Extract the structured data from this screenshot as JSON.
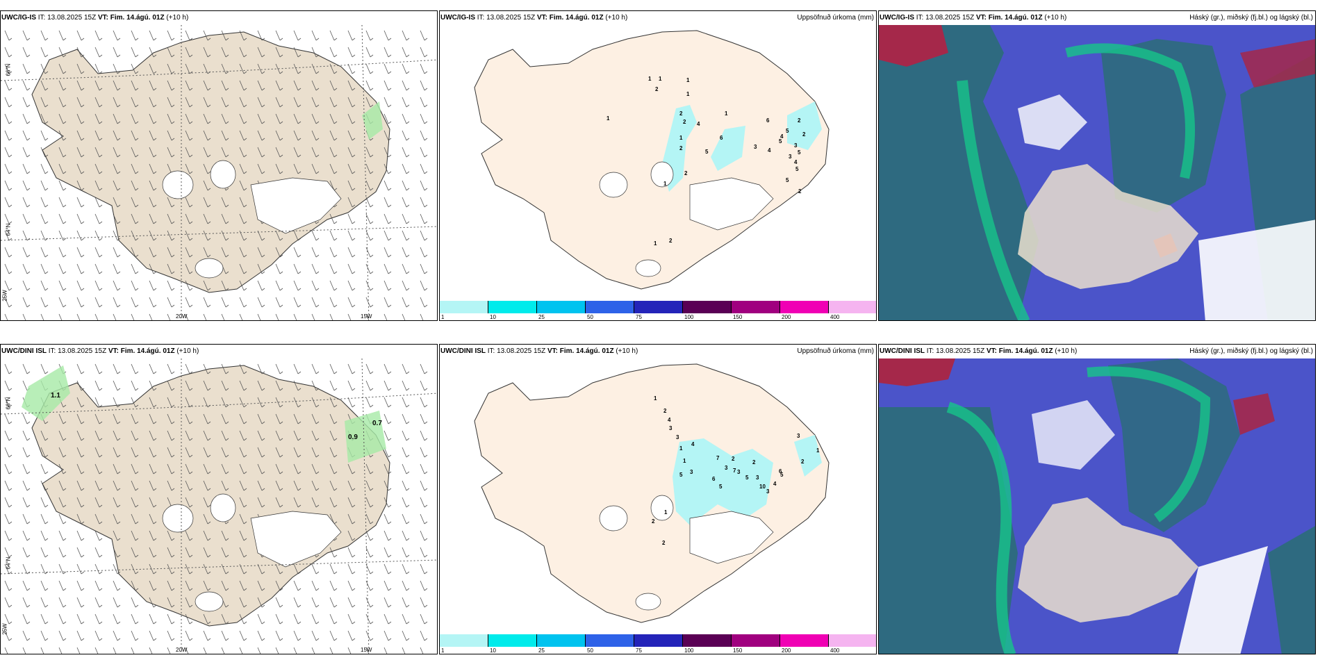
{
  "rows": [
    {
      "model": "UWC/IG-IS",
      "wind_title": {
        "model": "UWC/IG-IS",
        "it": "IT: 13.08.2025 15Z",
        "vt": "VT: Fim. 14.ágú. 01Z",
        "lead": "(+10 h)"
      },
      "precip_title": {
        "model": "UWC/IG-IS",
        "it": "IT: 13.08.2025 15Z",
        "vt": "VT: Fim. 14.ágú. 01Z",
        "lead": "(+10 h)",
        "right": "Uppsöfnuð úrkoma (mm)"
      },
      "cloud_title": {
        "model": "UWC/IG-IS",
        "it": "IT: 13.08.2025 15Z",
        "vt": "VT: Fim. 14.ágú. 01Z",
        "lead": "(+10 h)",
        "right": "Háský (gr.), miðský (fj.bl.) og lágský (bl.)"
      },
      "wind_labels": [],
      "precip_values": [
        "1",
        "1",
        "2",
        "1",
        "1",
        "1",
        "2",
        "2",
        "1",
        "4",
        "1",
        "2",
        "6",
        "5",
        "6",
        "2",
        "4",
        "5",
        "3",
        "4",
        "5",
        "3",
        "2",
        "3",
        "5",
        "4",
        "5",
        "5",
        "1",
        "2",
        "2",
        "1",
        "2"
      ]
    },
    {
      "model": "UWC/DINI ISL",
      "wind_title": {
        "model": "UWC/DINI ISL",
        "it": "IT: 13.08.2025 15Z",
        "vt": "VT: Fim. 14.ágú. 01Z",
        "lead": "(+10 h)"
      },
      "precip_title": {
        "model": "UWC/DINI ISL",
        "it": "IT: 13.08.2025 15Z",
        "vt": "VT: Fim. 14.ágú. 01Z",
        "lead": "(+10 h)",
        "right": "Uppsöfnuð úrkoma (mm)"
      },
      "cloud_title": {
        "model": "UWC/DINI ISL",
        "it": "IT: 13.08.2025 15Z",
        "vt": "VT: Fim. 14.ágú. 01Z",
        "lead": "(+10 h)",
        "right": "Háský (gr.), miðský (fj.bl.) og lágský (bl.)"
      },
      "wind_labels": [
        "1.1",
        "0.9",
        "0.7"
      ],
      "precip_values": [
        "1",
        "2",
        "4",
        "3",
        "3",
        "1",
        "4",
        "1",
        "3",
        "5",
        "7",
        "2",
        "3",
        "3",
        "6",
        "5",
        "7",
        "2",
        "10",
        "5",
        "3",
        "4",
        "3",
        "6",
        "5",
        "1",
        "3",
        "2",
        "1",
        "2",
        "2"
      ]
    }
  ],
  "axis_labels": {
    "lat_66": "66°N",
    "lat_64": "64°N",
    "lon_25": "25W",
    "lon_20": "20W",
    "lon_15": "15W"
  },
  "precip_legend": {
    "labels": [
      "1",
      "10",
      "25",
      "50",
      "75",
      "100",
      "150",
      "200",
      "400"
    ],
    "colors": [
      "#b4f5f5",
      "#00ebeb",
      "#00c3ef",
      "#2e62e8",
      "#2424b9",
      "#5a0055",
      "#a0007f",
      "#f000b4",
      "#f5b4f0"
    ]
  },
  "colors": {
    "land_tan": "#eadfce",
    "land_beige": "#fdf0e3",
    "wind_green": "#a6eaa6"
  }
}
